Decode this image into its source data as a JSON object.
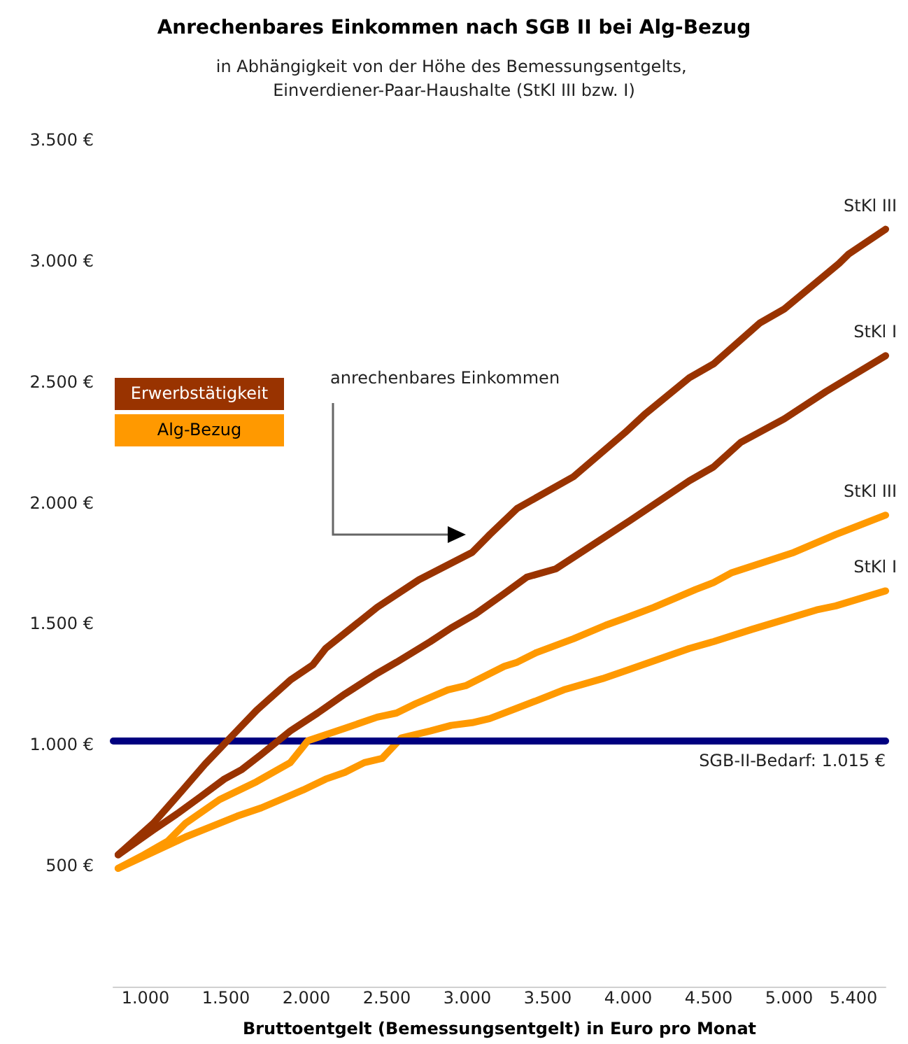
{
  "chart_data": {
    "type": "line",
    "title": "Anrechenbares Einkommen nach SGB II bei Alg-Bezug",
    "subtitle": "in Abhängigkeit von der Höhe des Bemessungsentgelts, Einverdiener-Paar-Haushalte (StKl III bzw. I)",
    "xlabel": "Bruttoentgelt (Bemessungsentgelt) in Euro pro Monat",
    "xlim": [
      800,
      5600
    ],
    "xticks": [
      {
        "value": 1000,
        "label": "1.000"
      },
      {
        "value": 1500,
        "label": "1.500"
      },
      {
        "value": 2000,
        "label": "2.000"
      },
      {
        "value": 2500,
        "label": "2.500"
      },
      {
        "value": 3000,
        "label": "3.000"
      },
      {
        "value": 3500,
        "label": "3.500"
      },
      {
        "value": 4000,
        "label": "4.000"
      },
      {
        "value": 4500,
        "label": "4.500"
      },
      {
        "value": 5000,
        "label": "5.000"
      },
      {
        "value": 5400,
        "label": "5.400"
      }
    ],
    "ylim": [
      0,
      3500
    ],
    "yticks": [
      {
        "value": 500,
        "label": "500 €"
      },
      {
        "value": 1000,
        "label": "1.000 €"
      },
      {
        "value": 1500,
        "label": "1.500 €"
      },
      {
        "value": 2000,
        "label": "2.000 €"
      },
      {
        "value": 2500,
        "label": "2.500 €"
      },
      {
        "value": 3000,
        "label": "3.000 €"
      },
      {
        "value": 3500,
        "label": "3.500 €"
      }
    ],
    "grid": false,
    "marker": "none",
    "line_style": "solid",
    "series": [
      {
        "name": "StKl III",
        "color": "#993300",
        "x": [
          830,
          1050,
          1230,
          1370,
          1510,
          1690,
          1900,
          2040,
          2120,
          2440,
          2700,
          3030,
          3140,
          3310,
          3660,
          3980,
          4100,
          4380,
          4530,
          4820,
          4970,
          5310,
          5370,
          5600
        ],
        "values": [
          545,
          676,
          812,
          920,
          1017,
          1142,
          1267,
          1330,
          1398,
          1568,
          1682,
          1795,
          1869,
          1977,
          2108,
          2290,
          2364,
          2517,
          2574,
          2744,
          2801,
          2989,
          3028,
          3131
        ]
      },
      {
        "name": "StKl I",
        "color": "#993300",
        "x": [
          830,
          1050,
          1200,
          1340,
          1490,
          1600,
          1720,
          1900,
          2070,
          2240,
          2440,
          2560,
          2770,
          2900,
          3050,
          3230,
          3370,
          3550,
          4010,
          4380,
          4530,
          4700,
          4970,
          5230,
          5600
        ],
        "values": [
          545,
          648,
          716,
          784,
          858,
          898,
          960,
          1057,
          1131,
          1210,
          1295,
          1341,
          1426,
          1483,
          1540,
          1625,
          1693,
          1727,
          1926,
          2091,
          2148,
          2250,
          2347,
          2460,
          2608
        ]
      },
      {
        "name": "StKl III",
        "color": "#ff9900",
        "x": [
          830,
          990,
          1140,
          1250,
          1460,
          1690,
          1900,
          2010,
          2240,
          2440,
          2560,
          2680,
          2880,
          2990,
          3230,
          3310,
          3430,
          3660,
          3860,
          3980,
          4160,
          4420,
          4530,
          4640,
          4850,
          5030,
          5290,
          5600
        ],
        "values": [
          489,
          545,
          602,
          676,
          773,
          847,
          926,
          1017,
          1068,
          1114,
          1131,
          1170,
          1227,
          1244,
          1324,
          1341,
          1381,
          1438,
          1494,
          1523,
          1568,
          1642,
          1670,
          1710,
          1756,
          1795,
          1869,
          1949
        ]
      },
      {
        "name": "StKl I",
        "color": "#ff9900",
        "x": [
          830,
          1050,
          1250,
          1400,
          1570,
          1720,
          1840,
          1980,
          2120,
          2240,
          2360,
          2470,
          2590,
          2770,
          2900,
          3030,
          3140,
          3430,
          3600,
          3840,
          4010,
          4380,
          4530,
          4770,
          4940,
          5170,
          5290,
          5600
        ],
        "values": [
          489,
          557,
          619,
          659,
          705,
          739,
          773,
          813,
          858,
          886,
          926,
          943,
          1028,
          1057,
          1080,
          1091,
          1108,
          1182,
          1227,
          1273,
          1312,
          1398,
          1426,
          1477,
          1511,
          1557,
          1574,
          1636
        ]
      }
    ],
    "ref_lines": [
      {
        "axis": "y",
        "value": 1015,
        "label": "SGB-II-Bedarf: 1.015 €",
        "color": "#000080",
        "line_style": "solid"
      }
    ],
    "annotations": [
      "Erwerbstätigkeit",
      "Alg-Bezug",
      "anrechenbares Einkommen"
    ]
  }
}
